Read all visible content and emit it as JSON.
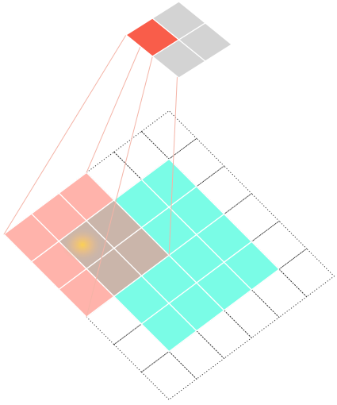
{
  "colors": {
    "output_active": "#f95d4a",
    "output_inactive": "#d3d3d3",
    "kernel": "#ffb3ab",
    "input": "#7afce6",
    "overlap": "#cab5aa",
    "padding_outline": "#333333",
    "connector": "#f4b3a6",
    "grid_line": "#ffffff",
    "highlight": "#ffcc66"
  },
  "grids": {
    "output": {
      "rows": 2,
      "cols": 2,
      "active_cell": [
        0,
        0
      ]
    },
    "padded_input": {
      "rows": 6,
      "cols": 6
    },
    "input": {
      "rows": 4,
      "cols": 4,
      "offset": [
        1,
        1
      ]
    },
    "kernel": {
      "rows": 3,
      "cols": 3,
      "offset": [
        0,
        0
      ],
      "center_cell": [
        1,
        1
      ]
    }
  }
}
